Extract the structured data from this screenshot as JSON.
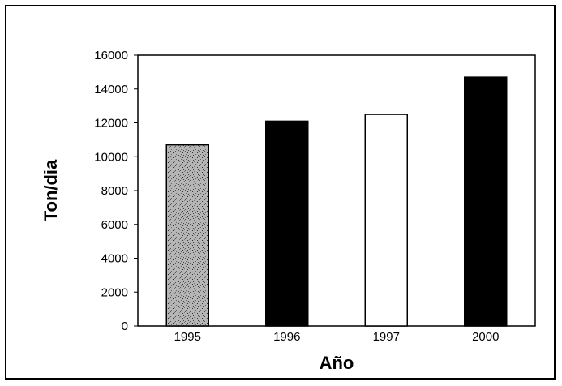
{
  "chart_data": {
    "type": "bar",
    "title": "",
    "xlabel": "Año",
    "ylabel": "Ton/dia",
    "categories": [
      "1995",
      "1996",
      "1997",
      "2000"
    ],
    "values": [
      10700,
      12100,
      12500,
      14700
    ],
    "ylim": [
      0,
      16000
    ],
    "yticks": [
      "0",
      "2000",
      "4000",
      "6000",
      "8000",
      "10000",
      "12000",
      "14000",
      "16000"
    ],
    "bar_fills": [
      "#a8a8a8",
      "#000000",
      "#ffffff",
      "#000000"
    ],
    "grid": false,
    "legend": "none"
  }
}
